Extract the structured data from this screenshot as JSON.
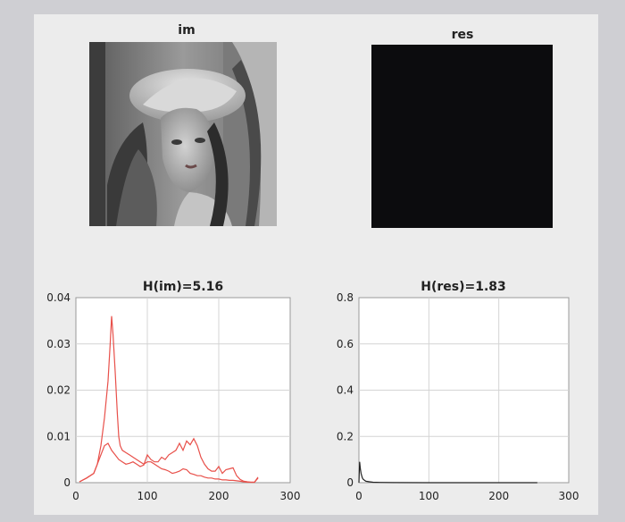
{
  "images": [
    {
      "title": "im",
      "description_icon": "grayscale-portrait-photo"
    },
    {
      "title": "res"
    }
  ],
  "chart_data": [
    {
      "type": "line",
      "title": "H(im)=5.16",
      "xlim": [
        0,
        300
      ],
      "ylim": [
        0,
        0.04
      ],
      "xticks": [
        "0",
        "100",
        "200",
        "300"
      ],
      "yticks": [
        "0",
        "0.01",
        "0.02",
        "0.03",
        "0.04"
      ],
      "grid": true,
      "color": "#e8504a",
      "series": [
        {
          "x": [
            5,
            15,
            25,
            30,
            35,
            40,
            45,
            48,
            50,
            52,
            55,
            58,
            60,
            62,
            65,
            70,
            75,
            80,
            85,
            90,
            95,
            100,
            105,
            110,
            115,
            120,
            125,
            130,
            135,
            140,
            145,
            150,
            155,
            160,
            165,
            170,
            175,
            180,
            185,
            190,
            195,
            200,
            205,
            210,
            215,
            220,
            225,
            230,
            235,
            240,
            245,
            250,
            255
          ],
          "y": [
            0.0002,
            0.001,
            0.002,
            0.004,
            0.008,
            0.014,
            0.022,
            0.03,
            0.036,
            0.032,
            0.024,
            0.015,
            0.01,
            0.008,
            0.007,
            0.0065,
            0.006,
            0.0055,
            0.005,
            0.0045,
            0.004,
            0.0045,
            0.0045,
            0.004,
            0.0035,
            0.003,
            0.0028,
            0.0025,
            0.002,
            0.0022,
            0.0025,
            0.003,
            0.0028,
            0.002,
            0.0018,
            0.0015,
            0.0015,
            0.0012,
            0.001,
            0.001,
            0.0008,
            0.0008,
            0.0006,
            0.0006,
            0.0005,
            0.0005,
            0.0004,
            0.0003,
            0.0002,
            0.0001,
            0.0001,
            0.0001,
            0.001
          ]
        },
        {
          "x": [
            5,
            15,
            25,
            30,
            35,
            40,
            45,
            50,
            55,
            60,
            65,
            70,
            75,
            80,
            85,
            90,
            95,
            100,
            105,
            110,
            115,
            120,
            125,
            130,
            135,
            140,
            145,
            150,
            155,
            160,
            165,
            170,
            175,
            180,
            185,
            190,
            195,
            200,
            205,
            210,
            215,
            220,
            225,
            230,
            235,
            240,
            245,
            250,
            255
          ],
          "y": [
            0.0002,
            0.001,
            0.002,
            0.004,
            0.006,
            0.008,
            0.0085,
            0.007,
            0.006,
            0.005,
            0.0045,
            0.004,
            0.0042,
            0.0045,
            0.004,
            0.0035,
            0.0038,
            0.006,
            0.005,
            0.0045,
            0.0045,
            0.0055,
            0.005,
            0.006,
            0.0065,
            0.007,
            0.0085,
            0.007,
            0.009,
            0.0082,
            0.0095,
            0.008,
            0.0055,
            0.004,
            0.003,
            0.0025,
            0.0025,
            0.0035,
            0.002,
            0.0028,
            0.003,
            0.0032,
            0.0015,
            0.0007,
            0.0003,
            0.0002,
            0.0001,
            0.0001,
            0.0012
          ]
        }
      ]
    },
    {
      "type": "line",
      "title": "H(res)=1.83",
      "xlim": [
        0,
        300
      ],
      "ylim": [
        0,
        0.8
      ],
      "xticks": [
        "0",
        "100",
        "200",
        "300"
      ],
      "yticks": [
        "0",
        "0.2",
        "0.4",
        "0.6",
        "0.8"
      ],
      "grid": true,
      "color": "#222222",
      "series": [
        {
          "x": [
            0,
            1,
            2,
            3,
            4,
            5,
            6,
            8,
            10,
            15,
            20,
            30,
            50,
            100,
            200,
            255
          ],
          "y": [
            0,
            0.09,
            0.06,
            0.04,
            0.03,
            0.02,
            0.015,
            0.01,
            0.006,
            0.004,
            0.002,
            0.001,
            0.0005,
            0,
            0,
            0
          ]
        }
      ]
    }
  ]
}
